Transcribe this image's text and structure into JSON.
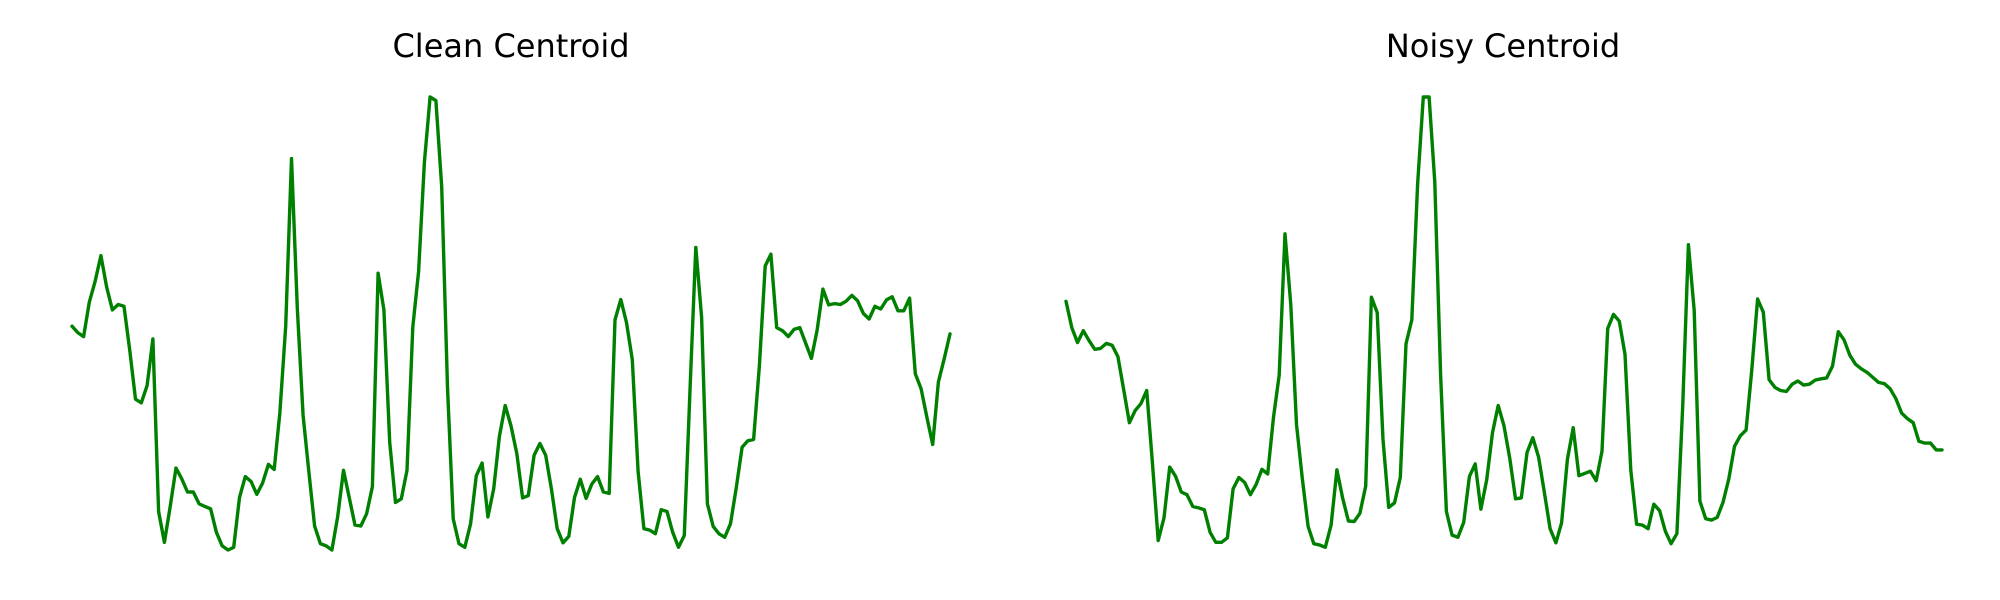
{
  "chart_data": [
    {
      "type": "line",
      "title": "Clean Centroid",
      "xlabel": "",
      "ylabel": "",
      "grid": false,
      "axes_visible": false,
      "ylim": [
        0,
        1
      ],
      "series": [
        {
          "color": "#008000",
          "values": [
            0.494,
            0.48,
            0.471,
            0.547,
            0.593,
            0.65,
            0.58,
            0.53,
            0.542,
            0.538,
            0.44,
            0.333,
            0.325,
            0.363,
            0.466,
            0.085,
            0.017,
            0.096,
            0.181,
            0.157,
            0.128,
            0.128,
            0.102,
            0.096,
            0.091,
            0.039,
            0.009,
            0.0,
            0.006,
            0.116,
            0.162,
            0.151,
            0.123,
            0.148,
            0.189,
            0.178,
            0.304,
            0.494,
            0.864,
            0.534,
            0.297,
            0.174,
            0.053,
            0.014,
            0.009,
            0.0,
            0.074,
            0.176,
            0.115,
            0.055,
            0.053,
            0.08,
            0.14,
            0.611,
            0.53,
            0.238,
            0.105,
            0.113,
            0.176,
            0.492,
            0.615,
            0.856,
            1.0,
            0.992,
            0.802,
            0.359,
            0.069,
            0.014,
            0.006,
            0.058,
            0.164,
            0.192,
            0.073,
            0.135,
            0.251,
            0.319,
            0.274,
            0.213,
            0.115,
            0.12,
            0.209,
            0.235,
            0.209,
            0.135,
            0.047,
            0.016,
            0.03,
            0.116,
            0.156,
            0.114,
            0.146,
            0.162,
            0.128,
            0.125,
            0.508,
            0.553,
            0.502,
            0.42,
            0.173,
            0.047,
            0.044,
            0.036,
            0.089,
            0.085,
            0.039,
            0.006,
            0.032,
            0.359,
            0.668,
            0.514,
            0.102,
            0.052,
            0.036,
            0.028,
            0.058,
            0.138,
            0.227,
            0.241,
            0.244,
            0.407,
            0.627,
            0.653,
            0.491,
            0.484,
            0.471,
            0.487,
            0.491,
            0.457,
            0.423,
            0.485,
            0.576,
            0.541,
            0.544,
            0.542,
            0.549,
            0.562,
            0.55,
            0.522,
            0.51,
            0.538,
            0.532,
            0.552,
            0.559,
            0.528,
            0.528,
            0.556,
            0.389,
            0.356,
            0.293,
            0.233,
            0.371,
            0.422,
            0.477
          ]
        }
      ]
    },
    {
      "type": "line",
      "title": "Noisy Centroid",
      "xlabel": "",
      "ylabel": "",
      "grid": false,
      "axes_visible": false,
      "ylim": [
        0,
        1
      ],
      "series": [
        {
          "color": "#008000",
          "values": [
            0.549,
            0.491,
            0.458,
            0.484,
            0.462,
            0.443,
            0.445,
            0.456,
            0.452,
            0.427,
            0.355,
            0.281,
            0.308,
            0.323,
            0.352,
            0.193,
            0.021,
            0.071,
            0.183,
            0.163,
            0.128,
            0.122,
            0.096,
            0.093,
            0.089,
            0.039,
            0.017,
            0.017,
            0.027,
            0.135,
            0.16,
            0.149,
            0.122,
            0.145,
            0.178,
            0.168,
            0.293,
            0.386,
            0.698,
            0.541,
            0.277,
            0.158,
            0.052,
            0.014,
            0.011,
            0.006,
            0.055,
            0.177,
            0.115,
            0.064,
            0.063,
            0.081,
            0.141,
            0.558,
            0.524,
            0.244,
            0.094,
            0.104,
            0.16,
            0.455,
            0.508,
            0.807,
            1.0,
            1.0,
            0.812,
            0.387,
            0.085,
            0.033,
            0.028,
            0.061,
            0.162,
            0.19,
            0.09,
            0.155,
            0.259,
            0.319,
            0.274,
            0.202,
            0.113,
            0.115,
            0.216,
            0.248,
            0.205,
            0.128,
            0.047,
            0.016,
            0.06,
            0.2,
            0.27,
            0.164,
            0.169,
            0.174,
            0.153,
            0.218,
            0.489,
            0.52,
            0.505,
            0.432,
            0.176,
            0.057,
            0.055,
            0.047,
            0.101,
            0.087,
            0.041,
            0.014,
            0.036,
            0.317,
            0.674,
            0.529,
            0.108,
            0.069,
            0.066,
            0.072,
            0.105,
            0.157,
            0.229,
            0.252,
            0.265,
            0.398,
            0.554,
            0.525,
            0.376,
            0.359,
            0.352,
            0.35,
            0.366,
            0.373,
            0.364,
            0.366,
            0.375,
            0.378,
            0.38,
            0.406,
            0.482,
            0.464,
            0.43,
            0.41,
            0.4,
            0.392,
            0.381,
            0.37,
            0.367,
            0.356,
            0.334,
            0.302,
            0.29,
            0.281,
            0.24,
            0.236,
            0.236,
            0.221,
            0.221
          ]
        }
      ]
    }
  ]
}
